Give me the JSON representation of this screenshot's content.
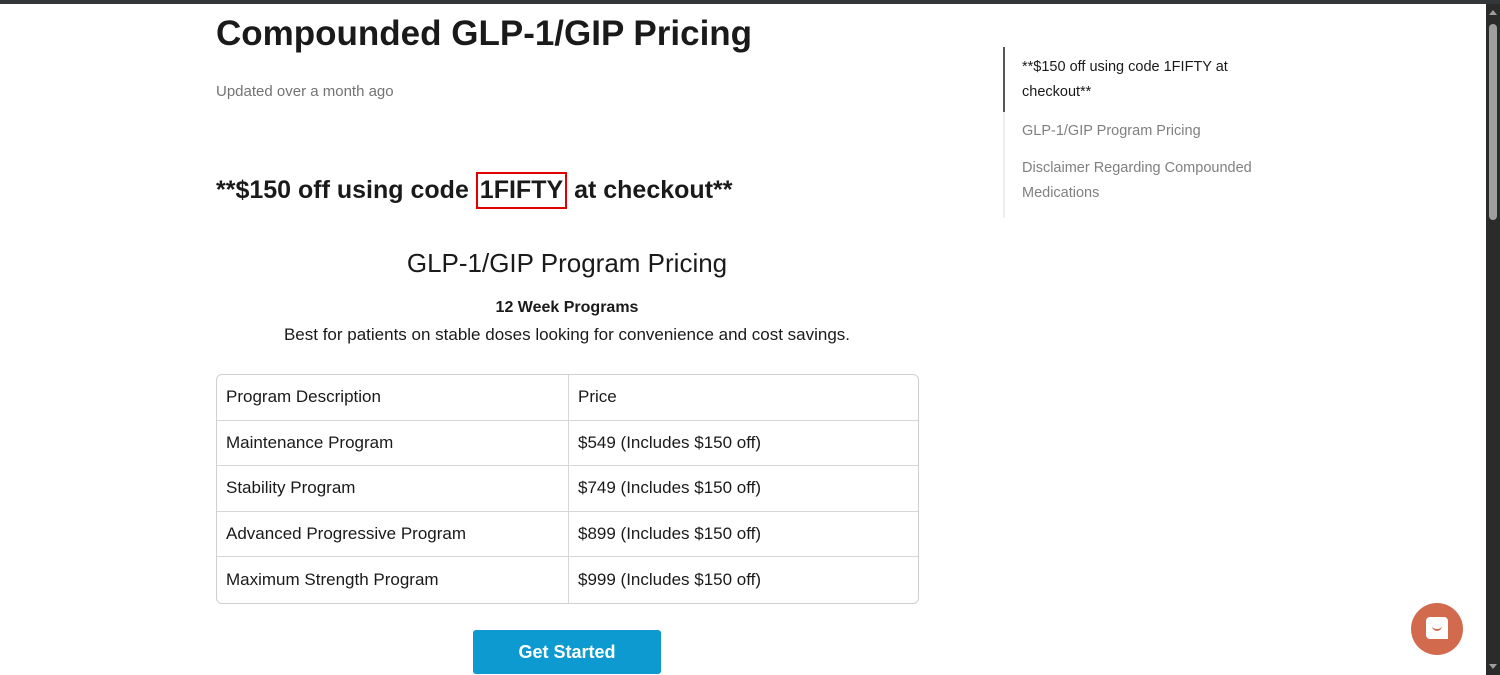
{
  "article": {
    "title": "Compounded GLP-1/GIP Pricing",
    "updated": "Updated over a month ago",
    "promo_prefix": "**$150 off using code ",
    "promo_code": "1FIFTY",
    "promo_suffix": " at checkout**",
    "section_title": "GLP-1/GIP Program Pricing",
    "program_heading": "12 Week Programs",
    "program_subtitle": "Best for patients on stable doses looking for convenience and cost savings.",
    "table": {
      "headers": [
        "Program Description",
        "Price"
      ],
      "rows": [
        [
          "Maintenance Program",
          "$549 (Includes $150 off)"
        ],
        [
          "Stability Program",
          "$749 (Includes $150 off)"
        ],
        [
          "Advanced Progressive Program",
          "$899 (Includes $150 off)"
        ],
        [
          "Maximum Strength Program",
          "$999 (Includes $150 off)"
        ]
      ]
    },
    "cta_label": "Get Started"
  },
  "toc": {
    "items": [
      {
        "label": "**$150 off using code 1FIFTY at checkout**",
        "active": true
      },
      {
        "label": "GLP-1/GIP Program Pricing",
        "active": false
      },
      {
        "label": "Disclaimer Regarding Compounded Medications",
        "active": false
      }
    ]
  },
  "chat": {
    "icon": "chat-bubble-icon",
    "color": "#d26b4d"
  },
  "colors": {
    "cta": "#0d9ad0",
    "highlight": "#e00000"
  }
}
